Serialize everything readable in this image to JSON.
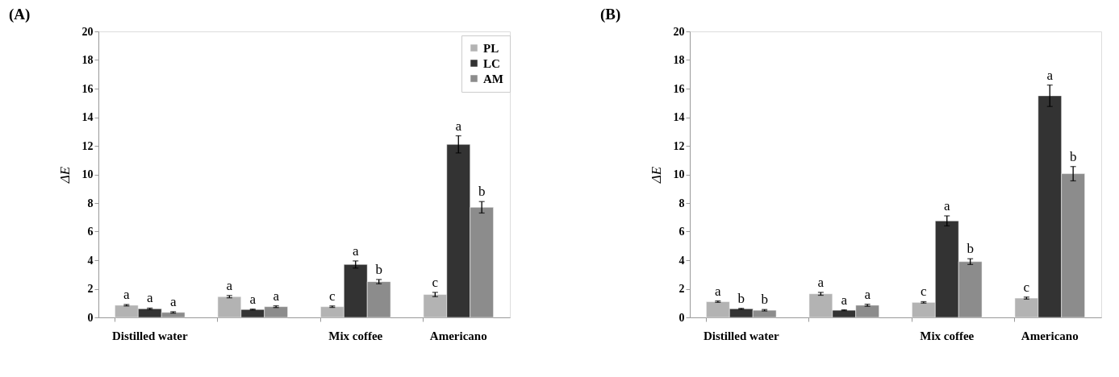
{
  "chart_data": [
    {
      "type": "bar",
      "title": "(A)",
      "ylabel": "ΔE",
      "categories": [
        "Distilled water",
        null,
        "Mix coffee",
        "Americano"
      ],
      "ylim": [
        0,
        20
      ],
      "yticks": [
        0,
        2,
        4,
        6,
        8,
        10,
        12,
        14,
        16,
        18,
        20
      ],
      "grid": false,
      "legend": "top right",
      "series": [
        {
          "name": "PL",
          "color": "#b3b3b3",
          "values": [
            0.85,
            1.45,
            0.75,
            1.6
          ],
          "errors": [
            0.05,
            0.08,
            0.05,
            0.15
          ],
          "value_labels": [
            "a",
            "a",
            "c",
            "c"
          ]
        },
        {
          "name": "LC",
          "color": "#333333",
          "values": [
            0.6,
            0.55,
            3.7,
            12.1
          ],
          "errors": [
            0.05,
            0.03,
            0.25,
            0.6
          ],
          "value_labels": [
            "a",
            "a",
            "a",
            "a"
          ]
        },
        {
          "name": "AM",
          "color": "#8c8c8c",
          "values": [
            0.35,
            0.75,
            2.5,
            7.7
          ],
          "errors": [
            0.05,
            0.06,
            0.15,
            0.4
          ],
          "value_labels": [
            "a",
            "a",
            "b",
            "b"
          ]
        }
      ]
    },
    {
      "type": "bar",
      "title": "(B)",
      "ylabel": "ΔE",
      "categories": [
        "Distilled water",
        null,
        "Mix coffee",
        "Americano"
      ],
      "ylim": [
        0,
        20
      ],
      "yticks": [
        0,
        2,
        4,
        6,
        8,
        10,
        12,
        14,
        16,
        18,
        20
      ],
      "grid": false,
      "series": [
        {
          "color": "#b3b3b3",
          "values": [
            1.1,
            1.65,
            1.05,
            1.35
          ],
          "errors": [
            0.05,
            0.1,
            0.05,
            0.07
          ],
          "value_labels": [
            "a",
            "a",
            "c",
            "c"
          ]
        },
        {
          "color": "#333333",
          "values": [
            0.6,
            0.5,
            6.75,
            15.5
          ],
          "errors": [
            0.03,
            0.03,
            0.35,
            0.75
          ],
          "value_labels": [
            "b",
            "a",
            "a",
            "a"
          ]
        },
        {
          "color": "#8c8c8c",
          "values": [
            0.5,
            0.85,
            3.9,
            10.05
          ],
          "errors": [
            0.05,
            0.07,
            0.2,
            0.5
          ],
          "value_labels": [
            "b",
            "a",
            "b",
            "b"
          ]
        }
      ]
    }
  ]
}
